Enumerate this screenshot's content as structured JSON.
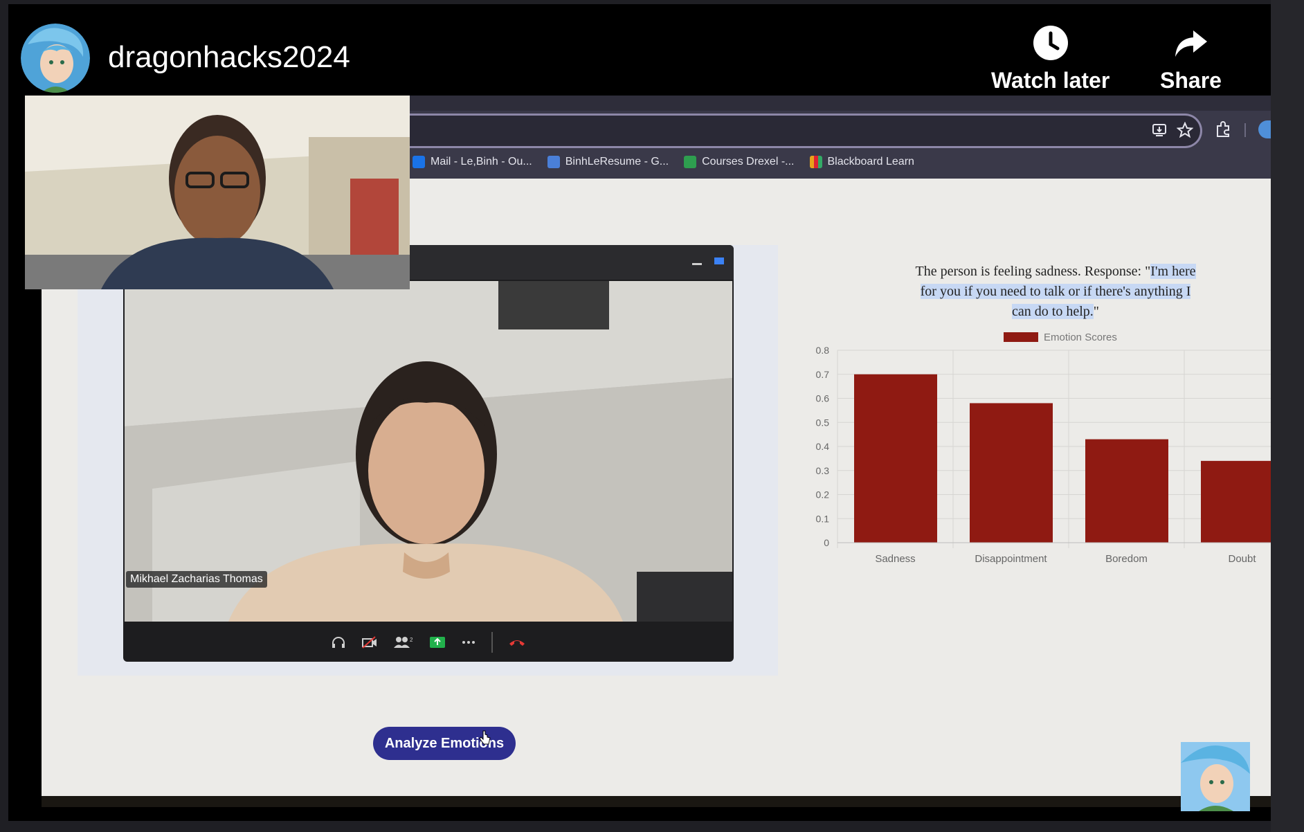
{
  "channel": {
    "name": "dragonhacks2024"
  },
  "overlay_actions": {
    "watch_later": "Watch later",
    "share": "Share"
  },
  "bookmarks": [
    {
      "label": "Mail - Le,Binh - Ou...",
      "color": "#1a73e8"
    },
    {
      "label": "BinhLeResume - G...",
      "color": "#4a7fd8"
    },
    {
      "label": "Courses Drexel -...",
      "color": "#2e9e4f"
    },
    {
      "label": "Blackboard Learn",
      "color": "#e8a21a"
    }
  ],
  "zoom": {
    "participant_name": "Mikhael Zacharias Thomas",
    "participants_count": "2"
  },
  "response_text": {
    "plain": "The person is feeling sadness. Response: \"",
    "highlighted": "I'm here for you if you need to talk or if there's anything I can do to help.",
    "end": "\""
  },
  "analyze_button": "Analyze Emotions",
  "chart_data": {
    "type": "bar",
    "categories": [
      "Sadness",
      "Disappointment",
      "Boredom",
      "Doubt"
    ],
    "series": [
      {
        "name": "Emotion Scores",
        "values": [
          0.7,
          0.58,
          0.43,
          0.34
        ]
      }
    ],
    "ylim": [
      0,
      0.8
    ],
    "yticks": [
      "0",
      "0.1",
      "0.2",
      "0.3",
      "0.4",
      "0.5",
      "0.6",
      "0.7",
      "0.8"
    ],
    "legend": "top-center",
    "grid": true,
    "bar_color": "#8f1a12"
  }
}
